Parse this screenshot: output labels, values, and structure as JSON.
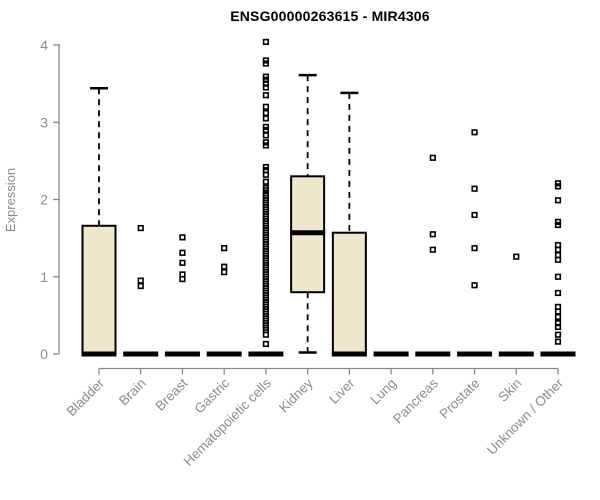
{
  "chart_data": {
    "type": "boxplot",
    "title": "ENSG00000263615 - MIR4306",
    "ylabel": "Expression",
    "xlabel": "",
    "ylim": [
      0,
      4
    ],
    "yticks": [
      0,
      1,
      2,
      3,
      4
    ],
    "grid": false,
    "legend": "none",
    "colors": {
      "box_fill": "#ede8cd",
      "box_stroke": "#000000",
      "median": "#000000",
      "whisker": "#000000",
      "outlier": "#000000",
      "axis": "#888888",
      "tick_label": "#8c8c8c",
      "title": "#000000"
    },
    "categories": [
      "Bladder",
      "Brain",
      "Breast",
      "Gastric",
      "Hematopoietic cells",
      "Kidney",
      "Liver",
      "Lung",
      "Pancreas",
      "Prostate",
      "Skin",
      "Unknown / Other"
    ],
    "series": [
      {
        "name": "Bladder",
        "q1": 0,
        "median": 0,
        "q3": 1.66,
        "whisker_low": 0,
        "whisker_high": 3.44,
        "outliers": []
      },
      {
        "name": "Brain",
        "q1": 0,
        "median": 0,
        "q3": 0,
        "whisker_low": 0,
        "whisker_high": 0,
        "outliers": [
          1.63,
          0.95,
          0.88
        ]
      },
      {
        "name": "Breast",
        "q1": 0,
        "median": 0,
        "q3": 0,
        "whisker_low": 0,
        "whisker_high": 0,
        "outliers": [
          1.51,
          1.31,
          1.18,
          1.03,
          0.97
        ]
      },
      {
        "name": "Gastric",
        "q1": 0,
        "median": 0,
        "q3": 0,
        "whisker_low": 0,
        "whisker_high": 0,
        "outliers": [
          1.37,
          1.13,
          1.06
        ]
      },
      {
        "name": "Hematopoietic cells",
        "q1": 0,
        "median": 0,
        "q3": 0,
        "whisker_low": 0,
        "whisker_high": 0,
        "outliers": [
          4.04,
          3.8,
          3.76,
          3.59,
          3.55,
          3.5,
          3.45,
          3.35,
          3.2,
          3.12,
          3.05,
          2.94,
          2.9,
          2.83,
          2.74,
          2.7,
          2.42,
          2.38,
          2.32,
          2.23,
          2.15,
          2.12,
          2.08,
          2.05,
          2.02,
          1.99,
          1.96,
          1.93,
          1.9,
          1.87,
          1.84,
          1.81,
          1.78,
          1.75,
          1.72,
          1.69,
          1.66,
          1.63,
          1.6,
          1.57,
          1.54,
          1.51,
          1.48,
          1.45,
          1.42,
          1.39,
          1.36,
          1.33,
          1.3,
          1.27,
          1.24,
          1.21,
          1.18,
          1.15,
          1.12,
          1.09,
          1.06,
          1.03,
          1.0,
          0.97,
          0.94,
          0.91,
          0.88,
          0.85,
          0.82,
          0.79,
          0.76,
          0.73,
          0.7,
          0.67,
          0.64,
          0.61,
          0.58,
          0.55,
          0.52,
          0.49,
          0.46,
          0.43,
          0.4,
          0.37,
          0.34,
          0.31,
          0.25,
          0.13
        ]
      },
      {
        "name": "Kidney",
        "q1": 0.8,
        "median": 1.57,
        "q3": 2.3,
        "whisker_low": 0.02,
        "whisker_high": 3.61,
        "outliers": []
      },
      {
        "name": "Liver",
        "q1": 0,
        "median": 0,
        "q3": 1.57,
        "whisker_low": 0,
        "whisker_high": 3.38,
        "outliers": []
      },
      {
        "name": "Lung",
        "q1": 0,
        "median": 0,
        "q3": 0,
        "whisker_low": 0,
        "whisker_high": 0,
        "outliers": []
      },
      {
        "name": "Pancreas",
        "q1": 0,
        "median": 0,
        "q3": 0,
        "whisker_low": 0,
        "whisker_high": 0,
        "outliers": [
          2.54,
          1.55,
          1.35
        ]
      },
      {
        "name": "Prostate",
        "q1": 0,
        "median": 0,
        "q3": 0,
        "whisker_low": 0,
        "whisker_high": 0,
        "outliers": [
          2.87,
          2.14,
          1.8,
          1.37,
          0.89
        ]
      },
      {
        "name": "Skin",
        "q1": 0,
        "median": 0,
        "q3": 0,
        "whisker_low": 0,
        "whisker_high": 0,
        "outliers": [
          1.26
        ]
      },
      {
        "name": "Unknown / Other",
        "q1": 0,
        "median": 0,
        "q3": 0,
        "whisker_low": 0,
        "whisker_high": 0,
        "outliers": [
          2.21,
          2.17,
          1.99,
          1.71,
          1.67,
          1.41,
          1.35,
          1.28,
          1.22,
          1.0,
          0.79,
          0.61,
          0.55,
          0.48,
          0.4,
          0.35,
          0.25,
          0.16
        ]
      }
    ]
  }
}
